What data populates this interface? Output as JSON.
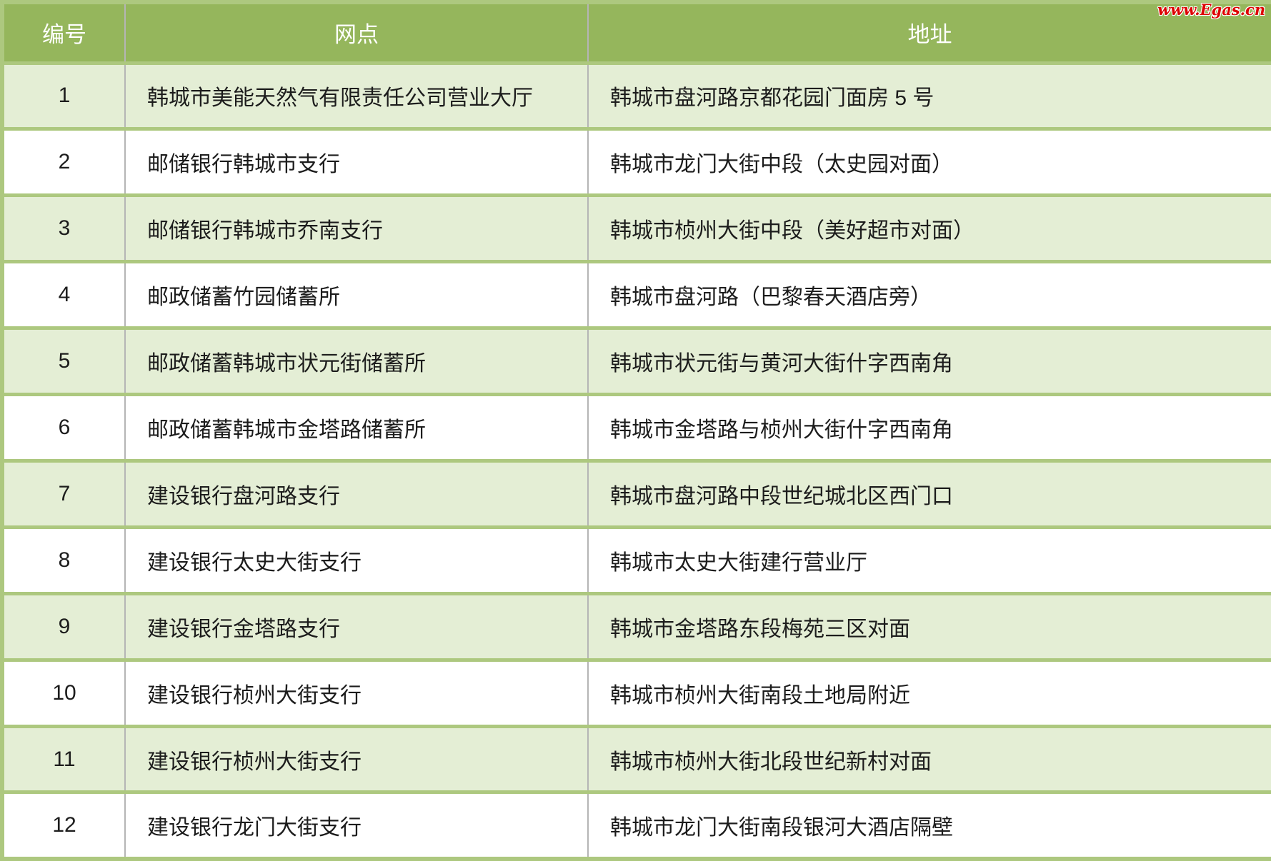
{
  "page": {
    "watermark": "www.Egas.cn"
  },
  "colors": {
    "header_bg": "#95b65c",
    "row_alt_bg": "#e4eed5",
    "row_bg": "#ffffff",
    "border_green": "#adc87f",
    "divider_gray": "#b5b5b5",
    "header_text": "#ffffff",
    "body_text": "#1c1c1c",
    "watermark_red": "#dd0000"
  },
  "chart_data": {
    "type": "table",
    "title": "",
    "columns": [
      "编号",
      "网点",
      "地址"
    ],
    "rows": [
      [
        "1",
        "韩城市美能天然气有限责任公司营业大厅",
        "韩城市盘河路京都花园门面房 5 号"
      ],
      [
        "2",
        "邮储银行韩城市支行",
        "韩城市龙门大街中段（太史园对面）"
      ],
      [
        "3",
        "邮储银行韩城市乔南支行",
        "韩城市桢州大街中段（美好超市对面）"
      ],
      [
        "4",
        "邮政储蓄竹园储蓄所",
        "韩城市盘河路（巴黎春天酒店旁）"
      ],
      [
        "5",
        "邮政储蓄韩城市状元街储蓄所",
        "韩城市状元街与黄河大街什字西南角"
      ],
      [
        "6",
        "邮政储蓄韩城市金塔路储蓄所",
        "韩城市金塔路与桢州大街什字西南角"
      ],
      [
        "7",
        "建设银行盘河路支行",
        "韩城市盘河路中段世纪城北区西门口"
      ],
      [
        "8",
        "建设银行太史大街支行",
        "韩城市太史大街建行营业厅"
      ],
      [
        "9",
        "建设银行金塔路支行",
        "韩城市金塔路东段梅苑三区对面"
      ],
      [
        "10",
        "建设银行桢州大街支行",
        "韩城市桢州大街南段土地局附近"
      ],
      [
        "11",
        "建设银行桢州大街支行",
        "韩城市桢州大街北段世纪新村对面"
      ],
      [
        "12",
        "建设银行龙门大街支行",
        "韩城市龙门大街南段银河大酒店隔壁"
      ]
    ]
  }
}
